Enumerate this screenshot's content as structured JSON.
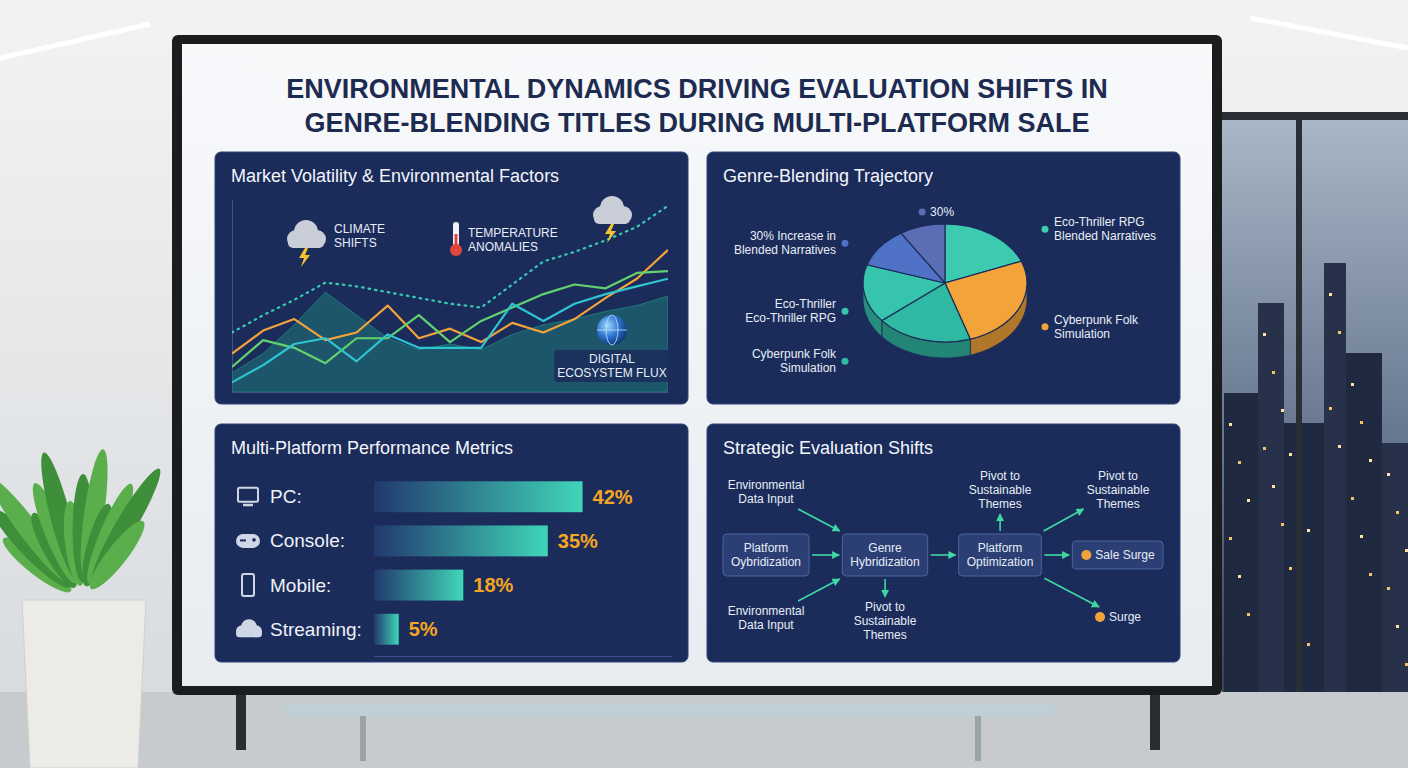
{
  "title": "ENVIRONMENTAL DYNAMICS DRIVING EVALUATION SHIFTS IN GENRE-BLENDING TITLES DURING MULTI-PLATFORM SALE",
  "chart_data": [
    {
      "type": "line",
      "title": "Market Volatility & Environmental Factors",
      "x": [
        0,
        1,
        2,
        3,
        4,
        5,
        6,
        7,
        8,
        9,
        10,
        11,
        12,
        13,
        14
      ],
      "xlim": [
        0,
        14
      ],
      "ylim": [
        0,
        100
      ],
      "tick_labels": false,
      "annotations": [
        "CLIMATE SHIFTS",
        "TEMPERATURE ANOMALIES",
        "DIGITAL ECOSYSTEM FLUX"
      ],
      "series": [
        {
          "type": "area",
          "color": "#1f7a78",
          "values": [
            10,
            20,
            35,
            52,
            40,
            28,
            22,
            25,
            22,
            30,
            35,
            38,
            42,
            45,
            50
          ]
        },
        {
          "type": "line",
          "color": "#36cdb4",
          "line_style": "dotted",
          "values": [
            31,
            40,
            48,
            57,
            55,
            52,
            49,
            46,
            44,
            56,
            68,
            73,
            79,
            86,
            97
          ]
        },
        {
          "type": "line",
          "color": "#f2a33a",
          "line_style": "solid",
          "values": [
            20,
            32,
            38,
            27,
            31,
            45,
            28,
            33,
            26,
            36,
            31,
            38,
            49,
            59,
            74
          ]
        },
        {
          "type": "line",
          "color": "#62d16e",
          "line_style": "solid",
          "values": [
            13,
            27,
            23,
            15,
            28,
            28,
            40,
            26,
            37,
            44,
            51,
            56,
            54,
            62,
            63
          ]
        },
        {
          "type": "line",
          "color": "#2fc4d2",
          "line_style": "solid",
          "values": [
            5,
            14,
            25,
            28,
            16,
            30,
            23,
            23,
            23,
            46,
            37,
            46,
            51,
            55,
            59
          ]
        }
      ]
    },
    {
      "type": "pie",
      "title": "Genre-Blending Trajectory",
      "categories": [
        "Eco-Thriller RPG Blended Narratives",
        "Cyberpunk Folk Simulation",
        "Cyberpunk Folk Simulation",
        "Eco-Thriller Eco-Thriller RPG",
        "30% Increase in Blended Narratives",
        "30%"
      ],
      "values": [
        19,
        26,
        19,
        16,
        11,
        9
      ],
      "colors": [
        "#3ccbb0",
        "#f2a33a",
        "#2fb8a2",
        "#36c4ad",
        "#4f72c6",
        "#5b6db5"
      ]
    },
    {
      "type": "bar",
      "orientation": "horizontal",
      "title": "Multi-Platform Performance Metrics",
      "categories": [
        "PC:",
        "Console:",
        "Mobile:",
        "Streaming:"
      ],
      "values": [
        42,
        35,
        18,
        5
      ],
      "value_labels": [
        "42%",
        "35%",
        "18%",
        "5%"
      ],
      "data_labels": true,
      "color": "#3fd6b8",
      "xlim": [
        0,
        60
      ],
      "tick_labels": false
    }
  ],
  "diagram": {
    "title": "Strategic Evaluation Shifts",
    "nodes": [
      "Environmental Data Input",
      "Platform Oybridization",
      "Environmental Data Input",
      "Genre Hybridization",
      "Pivot to Sustainable Themes",
      "Platform Optimization",
      "Pivot to Sustainable Themes",
      "Pivot to Sustainable Themes",
      "Sale Surge",
      "Surge"
    ]
  }
}
